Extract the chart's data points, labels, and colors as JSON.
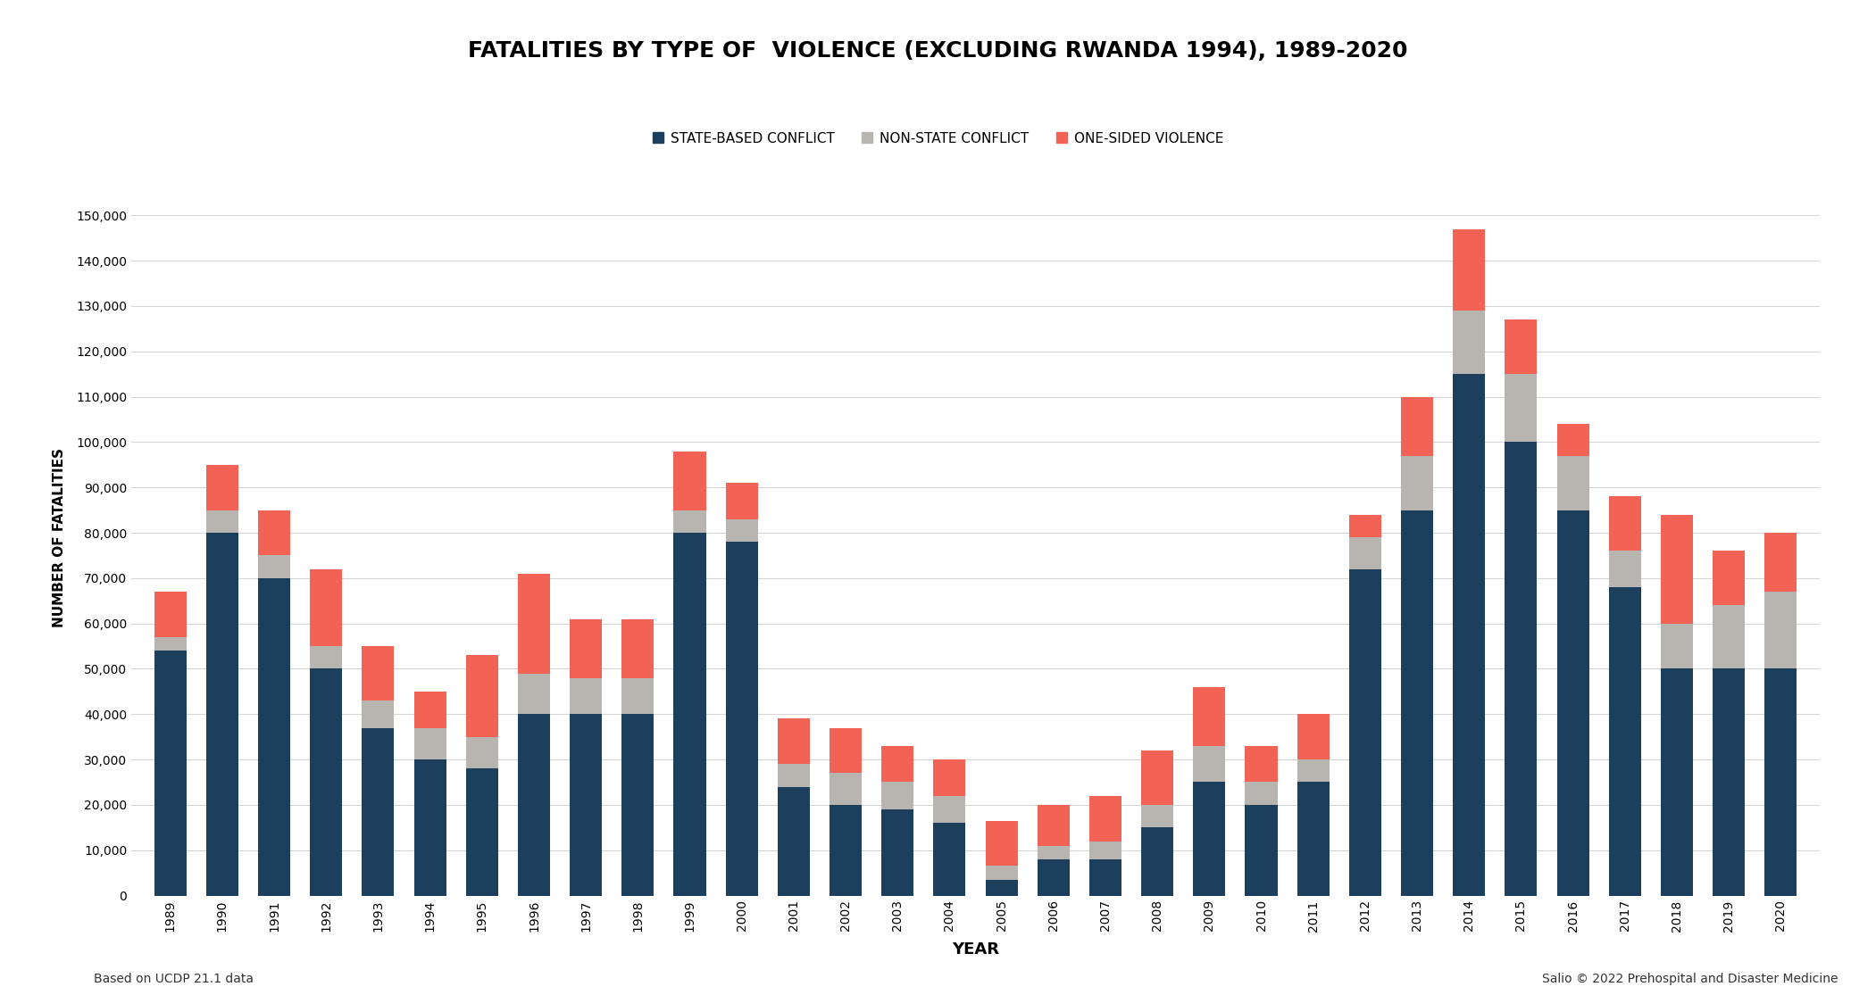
{
  "title": "FATALITIES BY TYPE OF  VIOLENCE (EXCLUDING RWANDA 1994), 1989-2020",
  "xlabel": "YEAR",
  "ylabel": "NUMBER OF FATALITIES",
  "footnote_left": "Based on UCDP 21.1 data",
  "footnote_right": "Salio © 2022 Prehospital and Disaster Medicine",
  "years": [
    1989,
    1990,
    1991,
    1992,
    1993,
    1994,
    1995,
    1996,
    1997,
    1998,
    1999,
    2000,
    2001,
    2002,
    2003,
    2004,
    2005,
    2006,
    2007,
    2008,
    2009,
    2010,
    2011,
    2012,
    2013,
    2014,
    2015,
    2016,
    2017,
    2018,
    2019,
    2020
  ],
  "state_based": [
    54000,
    80000,
    70000,
    50000,
    37000,
    30000,
    28000,
    40000,
    40000,
    40000,
    80000,
    78000,
    24000,
    20000,
    19000,
    16000,
    3500,
    8000,
    8000,
    15000,
    25000,
    20000,
    25000,
    72000,
    85000,
    115000,
    100000,
    85000,
    68000,
    50000,
    50000,
    50000
  ],
  "non_state": [
    3000,
    5000,
    5000,
    5000,
    6000,
    7000,
    7000,
    9000,
    8000,
    8000,
    5000,
    5000,
    5000,
    7000,
    6000,
    6000,
    3000,
    3000,
    4000,
    5000,
    8000,
    5000,
    5000,
    7000,
    12000,
    14000,
    15000,
    12000,
    8000,
    10000,
    14000,
    17000
  ],
  "one_sided": [
    10000,
    10000,
    10000,
    17000,
    12000,
    8000,
    18000,
    22000,
    13000,
    13000,
    13000,
    8000,
    10000,
    10000,
    8000,
    8000,
    10000,
    9000,
    10000,
    12000,
    13000,
    8000,
    10000,
    5000,
    13000,
    18000,
    12000,
    7000,
    12000,
    24000,
    12000,
    13000
  ],
  "color_state": "#1c3f5e",
  "color_nonstate": "#b8b4b0",
  "color_onesided": "#f26355",
  "ylim": [
    0,
    158000
  ],
  "yticks": [
    0,
    10000,
    20000,
    30000,
    40000,
    50000,
    60000,
    70000,
    80000,
    90000,
    100000,
    110000,
    120000,
    130000,
    140000,
    150000
  ],
  "ytick_labels": [
    "0",
    "10,000",
    "20,000",
    "30,000",
    "40,000",
    "50,000",
    "60,000",
    "70,000",
    "80,000",
    "90,000",
    "100,000",
    "110,000",
    "120,000",
    "130,000",
    "140,000",
    "150,000"
  ],
  "bg_color": "#ffffff",
  "grid_color": "#d5d5d5"
}
